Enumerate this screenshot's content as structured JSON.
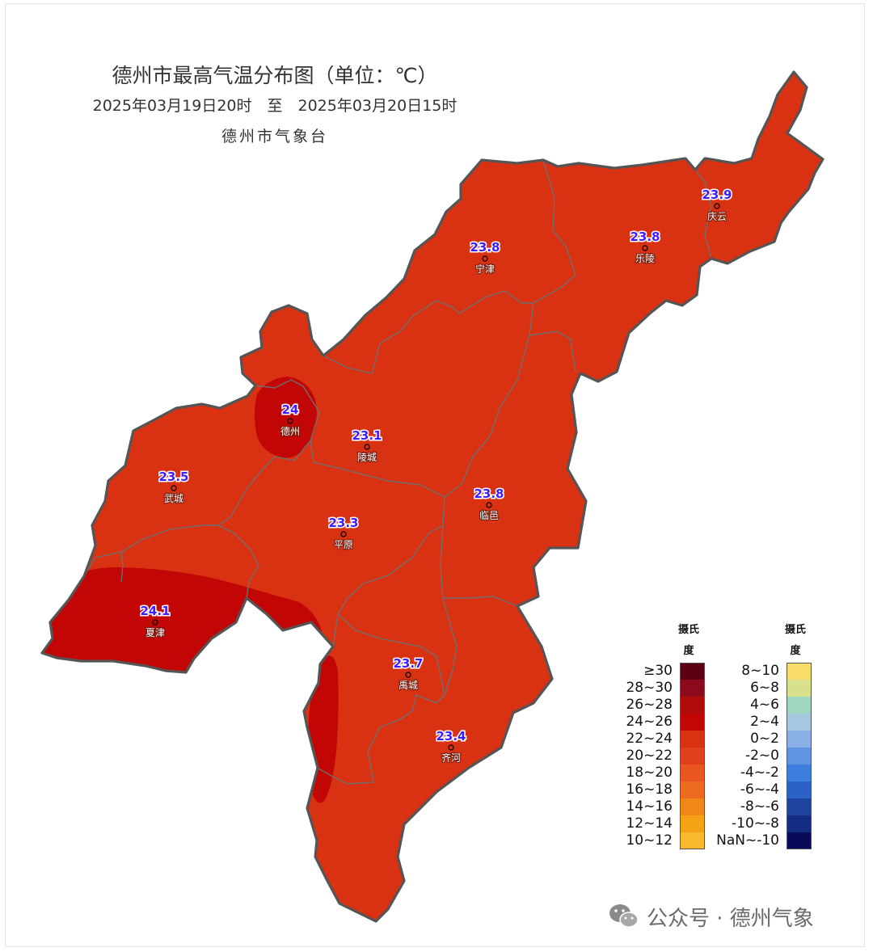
{
  "header": {
    "title": "德州市最高气温分布图（单位：℃）",
    "period": "2025年03月19日20时　至　2025年03月20日15时",
    "source": "德州市气象台"
  },
  "colors": {
    "fill_22_24": "#d93212",
    "fill_24_26": "#c20606",
    "county_line": "#6e6e6e",
    "outline": "#555555"
  },
  "stations": [
    {
      "name": "庆云",
      "value": "23.9"
    },
    {
      "name": "乐陵",
      "value": "23.8"
    },
    {
      "name": "宁津",
      "value": "23.8"
    },
    {
      "name": "德州",
      "value": "24"
    },
    {
      "name": "陵城",
      "value": "23.1"
    },
    {
      "name": "武城",
      "value": "23.5"
    },
    {
      "name": "临邑",
      "value": "23.8"
    },
    {
      "name": "平原",
      "value": "23.3"
    },
    {
      "name": "夏津",
      "value": "24.1"
    },
    {
      "name": "禹城",
      "value": "23.7"
    },
    {
      "name": "齐河",
      "value": "23.4"
    }
  ],
  "legend": {
    "unit_title_line1": "摄氏",
    "unit_title_line2": "度",
    "left": [
      {
        "label": "≥30",
        "color": "#5c0011"
      },
      {
        "label": "28~30",
        "color": "#8c0a1c"
      },
      {
        "label": "26~28",
        "color": "#b30a0a"
      },
      {
        "label": "24~26",
        "color": "#c20606"
      },
      {
        "label": "22~24",
        "color": "#d93212"
      },
      {
        "label": "20~22",
        "color": "#e0401c"
      },
      {
        "label": "18~20",
        "color": "#ea5620"
      },
      {
        "label": "16~18",
        "color": "#ee6a1e"
      },
      {
        "label": "14~16",
        "color": "#f08716"
      },
      {
        "label": "12~14",
        "color": "#f5a214"
      },
      {
        "label": "10~12",
        "color": "#f8b92c"
      }
    ],
    "right": [
      {
        "label": "8~10",
        "color": "#f7dc6a"
      },
      {
        "label": "6~8",
        "color": "#d8e08c"
      },
      {
        "label": "4~6",
        "color": "#9fd6c0"
      },
      {
        "label": "2~4",
        "color": "#a5c8e0"
      },
      {
        "label": "0~2",
        "color": "#8aaee6"
      },
      {
        "label": "-2~0",
        "color": "#5f94e0"
      },
      {
        "label": "-4~-2",
        "color": "#3c7ede"
      },
      {
        "label": "-6~-4",
        "color": "#2a62c8"
      },
      {
        "label": "-8~-6",
        "color": "#1e44a0"
      },
      {
        "label": "-10~-8",
        "color": "#142c82"
      },
      {
        "label": "NaN~-10",
        "color": "#0a0a5a"
      }
    ]
  },
  "watermark": {
    "text": "公众号 · 德州气象",
    "icon": "wechat-icon"
  }
}
